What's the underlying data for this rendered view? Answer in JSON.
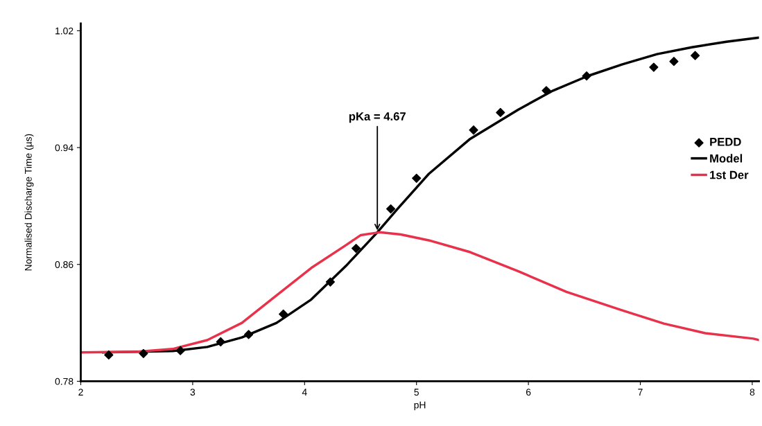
{
  "chart_data": {
    "type": "line",
    "xlabel": "pH",
    "ylabel": "Normalised Discharge Time (µs)",
    "xlim": [
      2,
      8.06
    ],
    "xticks": [
      2,
      3,
      4,
      5,
      6,
      7,
      8
    ],
    "ylim": [
      0.78,
      1.025
    ],
    "yticks": [
      0.78,
      0.86,
      0.94,
      1.02
    ],
    "grid": false,
    "legend": "right",
    "annotations": [
      {
        "text": "pKa = 4.67",
        "x": 4.65,
        "y": 0.882
      }
    ],
    "series": [
      {
        "name": "PEDD",
        "type": "scatter",
        "marker": "diamond",
        "color": "#000000",
        "x": [
          2.25,
          2.56,
          2.89,
          3.25,
          3.5,
          3.81,
          4.23,
          4.46,
          4.77,
          5.0,
          5.51,
          5.75,
          6.16,
          6.52,
          7.12,
          7.3,
          7.49
        ],
        "values": [
          0.798,
          0.799,
          0.801,
          0.807,
          0.812,
          0.826,
          0.848,
          0.871,
          0.898,
          0.919,
          0.952,
          0.964,
          0.979,
          0.989,
          0.995,
          0.999,
          1.003
        ]
      },
      {
        "name": "Model",
        "color": "#000000",
        "x": [
          2.2,
          2.82,
          3.13,
          3.44,
          3.75,
          4.06,
          4.37,
          4.65,
          4.83,
          5.11,
          5.48,
          5.91,
          6.22,
          6.53,
          6.84,
          7.15,
          7.46,
          7.77,
          8.06
        ],
        "values": [
          0.7998,
          0.8007,
          0.8035,
          0.81,
          0.82,
          0.836,
          0.859,
          0.882,
          0.898,
          0.922,
          0.946,
          0.966,
          0.979,
          0.989,
          0.997,
          1.004,
          1.0087,
          1.0125,
          1.0153
        ]
      },
      {
        "name": "1st Der",
        "color": "#e8314a",
        "x": [
          2.0,
          2.51,
          2.82,
          3.13,
          3.44,
          3.75,
          4.06,
          4.37,
          4.5,
          4.67,
          4.86,
          5.11,
          5.48,
          5.91,
          6.34,
          6.84,
          7.21,
          7.58,
          8.01,
          8.06
        ],
        "values": [
          0.7998,
          0.8002,
          0.8021,
          0.8082,
          0.82,
          0.8388,
          0.8576,
          0.8732,
          0.88,
          0.882,
          0.8805,
          0.8765,
          0.8684,
          0.8553,
          0.8412,
          0.8285,
          0.8195,
          0.8129,
          0.8092,
          0.8082
        ]
      }
    ]
  }
}
